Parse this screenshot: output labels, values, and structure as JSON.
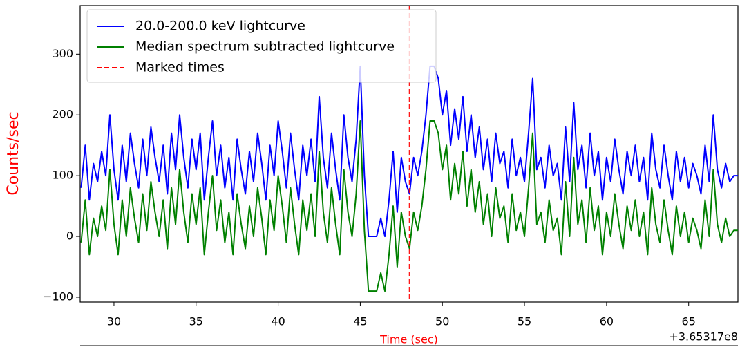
{
  "chart_data": {
    "type": "line",
    "xlabel": "Time (sec)",
    "ylabel": "Counts/sec",
    "x_offset_label": "+3.65317e8",
    "x": [
      28,
      28.25,
      28.5,
      28.75,
      29,
      29.25,
      29.5,
      29.75,
      30,
      30.25,
      30.5,
      30.75,
      31,
      31.25,
      31.5,
      31.75,
      32,
      32.25,
      32.5,
      32.75,
      33,
      33.25,
      33.5,
      33.75,
      34,
      34.25,
      34.5,
      34.75,
      35,
      35.25,
      35.5,
      35.75,
      36,
      36.25,
      36.5,
      36.75,
      37,
      37.25,
      37.5,
      37.75,
      38,
      38.25,
      38.5,
      38.75,
      39,
      39.25,
      39.5,
      39.75,
      40,
      40.25,
      40.5,
      40.75,
      41,
      41.25,
      41.5,
      41.75,
      42,
      42.25,
      42.5,
      42.75,
      43,
      43.25,
      43.5,
      43.75,
      44,
      44.25,
      44.5,
      44.75,
      45,
      45.25,
      45.5,
      45.75,
      46,
      46.25,
      46.5,
      46.75,
      47,
      47.25,
      47.5,
      47.75,
      48,
      48.25,
      48.5,
      48.75,
      49,
      49.25,
      49.5,
      49.75,
      50,
      50.25,
      50.5,
      50.75,
      51,
      51.25,
      51.5,
      51.75,
      52,
      52.25,
      52.5,
      52.75,
      53,
      53.25,
      53.5,
      53.75,
      54,
      54.25,
      54.5,
      54.75,
      55,
      55.25,
      55.5,
      55.75,
      56,
      56.25,
      56.5,
      56.75,
      57,
      57.25,
      57.5,
      57.75,
      58,
      58.25,
      58.5,
      58.75,
      59,
      59.25,
      59.5,
      59.75,
      60,
      60.25,
      60.5,
      60.75,
      61,
      61.25,
      61.5,
      61.75,
      62,
      62.25,
      62.5,
      62.75,
      63,
      63.25,
      63.5,
      63.75,
      64,
      64.25,
      64.5,
      64.75,
      65,
      65.25,
      65.5,
      65.75,
      66,
      66.25,
      66.5,
      66.75,
      67,
      67.25,
      67.5,
      67.75,
      68
    ],
    "series": [
      {
        "name": "20.0-200.0 keV lightcurve",
        "color": "#0000ff",
        "values": [
          80,
          150,
          60,
          120,
          90,
          140,
          100,
          200,
          110,
          60,
          150,
          90,
          170,
          120,
          80,
          160,
          100,
          180,
          130,
          90,
          150,
          70,
          170,
          110,
          200,
          130,
          80,
          160,
          110,
          170,
          60,
          130,
          190,
          100,
          150,
          80,
          130,
          60,
          160,
          110,
          70,
          140,
          90,
          170,
          120,
          60,
          150,
          100,
          190,
          140,
          80,
          170,
          110,
          60,
          150,
          100,
          160,
          90,
          230,
          130,
          80,
          170,
          110,
          60,
          200,
          130,
          90,
          160,
          280,
          100,
          0,
          0,
          0,
          30,
          0,
          60,
          140,
          40,
          130,
          90,
          70,
          130,
          100,
          140,
          200,
          280,
          280,
          260,
          200,
          240,
          150,
          210,
          160,
          230,
          140,
          200,
          130,
          180,
          110,
          160,
          90,
          170,
          120,
          140,
          80,
          160,
          100,
          130,
          90,
          170,
          260,
          110,
          130,
          80,
          150,
          100,
          120,
          60,
          180,
          90,
          220,
          110,
          150,
          80,
          170,
          100,
          140,
          60,
          130,
          90,
          160,
          110,
          70,
          140,
          100,
          150,
          90,
          130,
          60,
          170,
          110,
          80,
          150,
          100,
          60,
          140,
          90,
          130,
          80,
          120,
          100,
          70,
          150,
          90,
          200,
          110,
          80,
          120,
          90,
          100,
          100
        ]
      },
      {
        "name": "Median spectrum subtracted lightcurve",
        "color": "#008000",
        "values": [
          -10,
          60,
          -30,
          30,
          0,
          50,
          10,
          110,
          20,
          -30,
          60,
          0,
          80,
          30,
          -10,
          70,
          10,
          90,
          40,
          0,
          60,
          -20,
          80,
          20,
          110,
          40,
          -10,
          70,
          20,
          80,
          -30,
          40,
          100,
          10,
          60,
          -10,
          40,
          -30,
          70,
          20,
          -20,
          50,
          0,
          80,
          30,
          -30,
          60,
          10,
          100,
          50,
          -10,
          80,
          20,
          -30,
          60,
          10,
          70,
          0,
          140,
          40,
          -10,
          80,
          20,
          -30,
          110,
          40,
          0,
          70,
          190,
          10,
          -90,
          -90,
          -90,
          -60,
          -90,
          -30,
          50,
          -50,
          40,
          0,
          -20,
          40,
          10,
          50,
          110,
          190,
          190,
          170,
          110,
          150,
          60,
          120,
          70,
          140,
          50,
          110,
          40,
          90,
          20,
          70,
          0,
          80,
          30,
          50,
          -10,
          70,
          10,
          40,
          0,
          80,
          170,
          20,
          40,
          -10,
          60,
          10,
          30,
          -30,
          90,
          0,
          130,
          20,
          60,
          -10,
          80,
          10,
          50,
          -30,
          40,
          0,
          70,
          20,
          -20,
          50,
          10,
          60,
          0,
          40,
          -30,
          80,
          20,
          -10,
          60,
          10,
          -30,
          50,
          0,
          40,
          -10,
          30,
          10,
          -20,
          60,
          0,
          110,
          20,
          -10,
          30,
          0,
          10,
          10
        ]
      }
    ],
    "markers": {
      "name": "Marked times",
      "color": "#ff0000",
      "x": [
        48.0
      ]
    },
    "xlim": [
      27.94,
      68
    ],
    "ylim": [
      -108,
      380
    ],
    "xticks": [
      30,
      35,
      40,
      45,
      50,
      55,
      60,
      65
    ],
    "yticks": [
      {
        "value": -100,
        "label": "−100"
      },
      0,
      100,
      200,
      300
    ],
    "legend": "upper left"
  }
}
